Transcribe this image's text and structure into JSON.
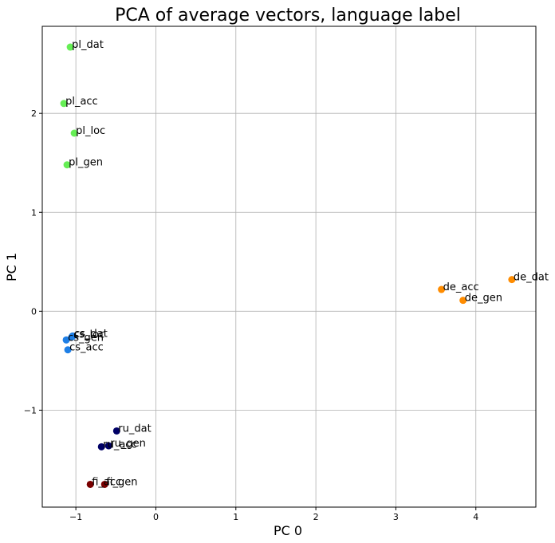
{
  "chart_data": {
    "type": "scatter",
    "title": "PCA of average vectors, language label",
    "xlabel": "PC 0",
    "ylabel": "PC 1",
    "xlim": [
      -1.42,
      4.75
    ],
    "ylim": [
      -1.98,
      2.88
    ],
    "xticks": [
      -1,
      0,
      1,
      2,
      3,
      4
    ],
    "yticks": [
      -1,
      0,
      1,
      2
    ],
    "xtick_labels": [
      "−1",
      "0",
      "1",
      "2",
      "3",
      "4"
    ],
    "ytick_labels": [
      "−1",
      "0",
      "1",
      "2"
    ],
    "grid": true,
    "colors": {
      "pl": "#66ee55",
      "de": "#ff8c00",
      "cs": "#1e7fe6",
      "ru": "#000066",
      "fi": "#7a0000"
    },
    "points": [
      {
        "label": "pl_dat",
        "x": -1.07,
        "y": 2.67,
        "group": "pl"
      },
      {
        "label": "pl_acc",
        "x": -1.15,
        "y": 2.1,
        "group": "pl"
      },
      {
        "label": "pl_loc",
        "x": -1.02,
        "y": 1.8,
        "group": "pl"
      },
      {
        "label": "pl_gen",
        "x": -1.11,
        "y": 1.48,
        "group": "pl"
      },
      {
        "label": "de_dat",
        "x": 4.45,
        "y": 0.32,
        "group": "de"
      },
      {
        "label": "de_acc",
        "x": 3.57,
        "y": 0.22,
        "group": "de"
      },
      {
        "label": "de_gen",
        "x": 3.84,
        "y": 0.11,
        "group": "de"
      },
      {
        "label": "cs_loc",
        "x": -1.05,
        "y": -0.26,
        "group": "cs"
      },
      {
        "label": "cs_dat",
        "x": -1.04,
        "y": -0.25,
        "group": "cs"
      },
      {
        "label": "cs_gen",
        "x": -1.12,
        "y": -0.29,
        "group": "cs"
      },
      {
        "label": "cs_acc",
        "x": -1.1,
        "y": -0.39,
        "group": "cs"
      },
      {
        "label": "ru_dat",
        "x": -0.49,
        "y": -1.21,
        "group": "ru"
      },
      {
        "label": "ru_acc",
        "x": -0.68,
        "y": -1.37,
        "group": "ru"
      },
      {
        "label": "ru_gen",
        "x": -0.59,
        "y": -1.36,
        "group": "ru"
      },
      {
        "label": "fi_acc",
        "x": -0.82,
        "y": -1.75,
        "group": "fi"
      },
      {
        "label": "fi_gen",
        "x": -0.64,
        "y": -1.75,
        "group": "fi"
      }
    ]
  }
}
